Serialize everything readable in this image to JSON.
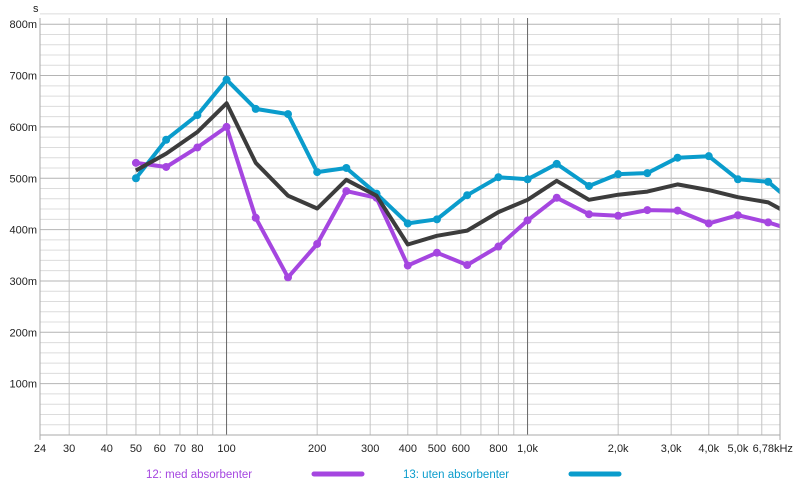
{
  "chart_data": {
    "type": "line",
    "ylabel": "s",
    "xlabel_unit": "kHz",
    "x_scale": "log",
    "xlim": [
      24,
      6780
    ],
    "ylim": [
      0,
      830
    ],
    "grid": true,
    "x_ticks": [
      {
        "v": 24,
        "label": "24"
      },
      {
        "v": 30,
        "label": "30"
      },
      {
        "v": 40,
        "label": "40"
      },
      {
        "v": 50,
        "label": "50"
      },
      {
        "v": 60,
        "label": "60"
      },
      {
        "v": 70,
        "label": "70"
      },
      {
        "v": 80,
        "label": "80"
      },
      {
        "v": 100,
        "label": "100"
      },
      {
        "v": 200,
        "label": "200"
      },
      {
        "v": 300,
        "label": "300"
      },
      {
        "v": 400,
        "label": "400"
      },
      {
        "v": 500,
        "label": "500"
      },
      {
        "v": 600,
        "label": "600"
      },
      {
        "v": 800,
        "label": "800"
      },
      {
        "v": 1000,
        "label": "1,0k"
      },
      {
        "v": 2000,
        "label": "2,0k"
      },
      {
        "v": 3000,
        "label": "3,0k"
      },
      {
        "v": 4000,
        "label": "4,0k"
      },
      {
        "v": 5000,
        "label": "5,0k"
      },
      {
        "v": 6780,
        "label": "6,78kHz"
      }
    ],
    "y_ticks": [
      {
        "v": 100,
        "label": "100m"
      },
      {
        "v": 200,
        "label": "200m"
      },
      {
        "v": 300,
        "label": "300m"
      },
      {
        "v": 400,
        "label": "400m"
      },
      {
        "v": 500,
        "label": "500m"
      },
      {
        "v": 600,
        "label": "600m"
      },
      {
        "v": 700,
        "label": "700m"
      },
      {
        "v": 800,
        "label": "800m"
      }
    ],
    "x": [
      50,
      63,
      80,
      100,
      125,
      160,
      200,
      250,
      315,
      400,
      500,
      630,
      800,
      1000,
      1250,
      1600,
      2000,
      2500,
      3150,
      4000,
      5000,
      6300,
      8000
    ],
    "series": [
      {
        "name": "12: med absorbenter",
        "color": "#a546e0",
        "markers": true,
        "values": [
          530,
          522,
          560,
          600,
          423,
          307,
          372,
          475,
          462,
          330,
          355,
          331,
          367,
          418,
          462,
          430,
          427,
          438,
          437,
          412,
          428,
          414,
          395
        ]
      },
      {
        "name": "13: uten absorbenter",
        "color": "#0a9ccc",
        "markers": true,
        "values": [
          500,
          575,
          623,
          692,
          635,
          625,
          512,
          520,
          470,
          412,
          420,
          467,
          502,
          498,
          528,
          485,
          508,
          510,
          540,
          543,
          498,
          493,
          441
        ]
      },
      {
        "name": "",
        "color": "#3c3c3c",
        "markers": false,
        "values": [
          515,
          548,
          590,
          646,
          530,
          466,
          441,
          497,
          466,
          371,
          388,
          398,
          434,
          458,
          495,
          458,
          468,
          474,
          488,
          477,
          463,
          453,
          420
        ]
      }
    ],
    "legend": {
      "placement": "bottom",
      "entries": [
        0,
        1
      ]
    }
  }
}
